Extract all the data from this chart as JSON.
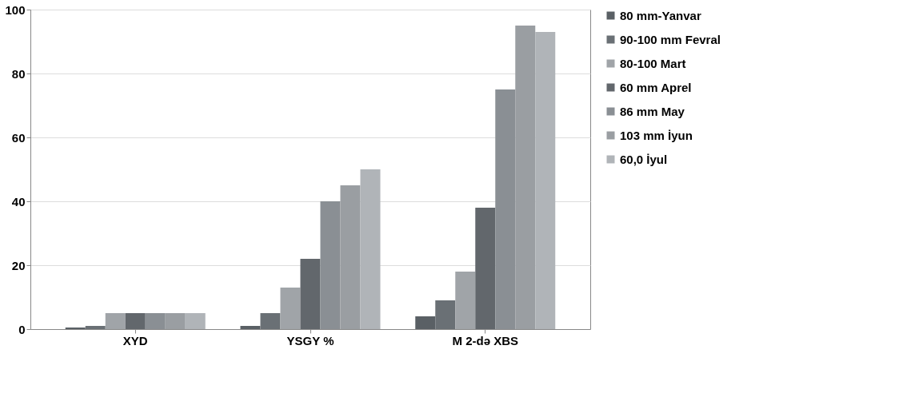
{
  "chart_data": {
    "type": "bar",
    "categories": [
      "XYD",
      "YSGY %",
      "M 2-də XBS"
    ],
    "series": [
      {
        "name": "80 mm-Yanvar",
        "color": "#5a6065",
        "values": [
          0.5,
          1,
          4
        ]
      },
      {
        "name": "90-100 mm Fevral",
        "color": "#6a7075",
        "values": [
          1,
          5,
          9
        ]
      },
      {
        "name": "80-100 Mart",
        "color": "#a0a4a8",
        "values": [
          5,
          13,
          18
        ]
      },
      {
        "name": "60 mm Aprel",
        "color": "#62676c",
        "values": [
          5,
          22,
          38
        ]
      },
      {
        "name": "86 mm May",
        "color": "#8a8f94",
        "values": [
          5,
          40,
          75
        ]
      },
      {
        "name": "103 mm İyun",
        "color": "#9a9ea2",
        "values": [
          5,
          45,
          95
        ]
      },
      {
        "name": "60,0 İyul",
        "color": "#b0b4b8",
        "values": [
          5,
          50,
          93
        ]
      }
    ],
    "ylim": [
      0,
      100
    ],
    "yticks": [
      0,
      20,
      40,
      60,
      80,
      100
    ],
    "grid": "y",
    "legend": "right"
  }
}
